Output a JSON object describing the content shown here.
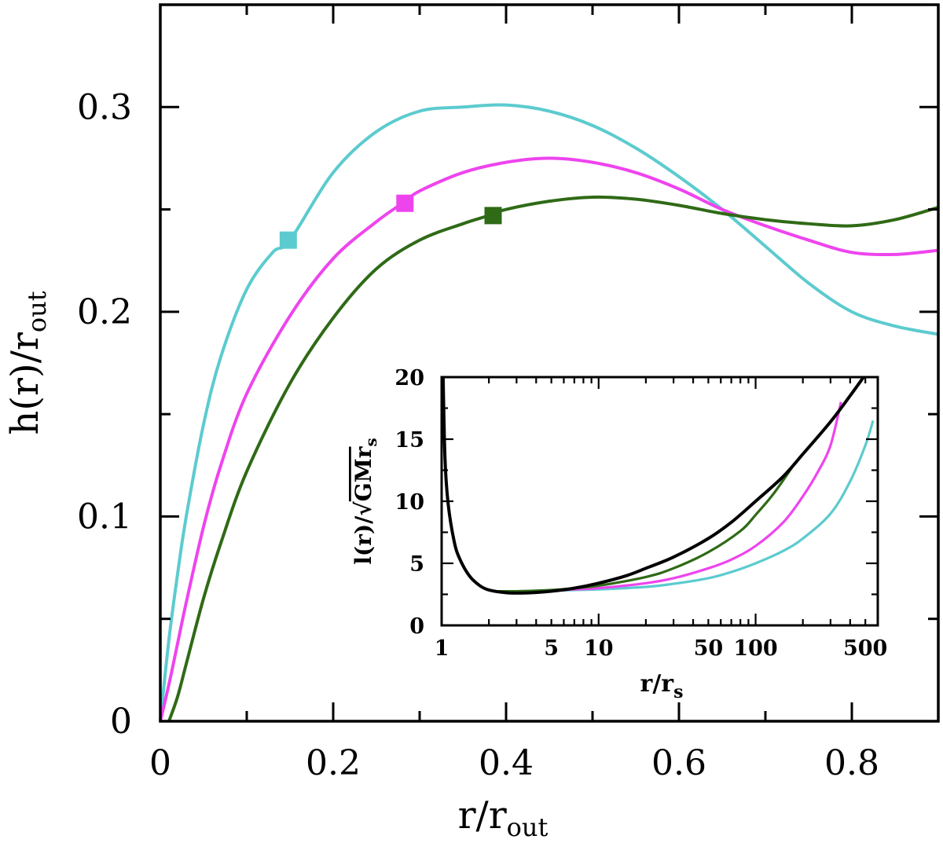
{
  "chart_data": [
    {
      "type": "line",
      "panel": "main",
      "xlabel": "r/r",
      "xlabel_sub": "out",
      "ylabel": "h(r)/r",
      "ylabel_sub": "out",
      "xlim": [
        0,
        0.9
      ],
      "ylim": [
        0,
        0.35
      ],
      "xticks": [
        {
          "value": 0,
          "label": "0"
        },
        {
          "value": 0.2,
          "label": "0.2"
        },
        {
          "value": 0.4,
          "label": "0.4"
        },
        {
          "value": 0.6,
          "label": "0.6"
        },
        {
          "value": 0.8,
          "label": "0.8"
        }
      ],
      "xticks_minor": [
        0.1,
        0.3,
        0.5,
        0.7
      ],
      "yticks": [
        {
          "value": 0,
          "label": "0"
        },
        {
          "value": 0.1,
          "label": "0.1"
        },
        {
          "value": 0.2,
          "label": "0.2"
        },
        {
          "value": 0.3,
          "label": "0.3"
        }
      ],
      "yticks_minor": [
        0.05,
        0.15,
        0.25
      ],
      "series": [
        {
          "name": "cyan",
          "color": "#5ccbcf",
          "x": [
            0.0,
            0.01,
            0.02,
            0.03,
            0.05,
            0.07,
            0.1,
            0.13,
            0.15,
            0.2,
            0.25,
            0.3,
            0.35,
            0.4,
            0.45,
            0.5,
            0.55,
            0.6,
            0.65,
            0.7,
            0.75,
            0.8,
            0.85,
            0.9
          ],
          "y": [
            0.0,
            0.04,
            0.072,
            0.1,
            0.145,
            0.178,
            0.211,
            0.229,
            0.235,
            0.268,
            0.288,
            0.298,
            0.3,
            0.301,
            0.298,
            0.291,
            0.28,
            0.266,
            0.25,
            0.232,
            0.214,
            0.2,
            0.193,
            0.189
          ],
          "marker": {
            "x": 0.148,
            "y": 0.235
          }
        },
        {
          "name": "magenta",
          "color": "#ee44ee",
          "x": [
            0.0,
            0.01,
            0.02,
            0.03,
            0.05,
            0.07,
            0.1,
            0.15,
            0.2,
            0.25,
            0.28,
            0.3,
            0.35,
            0.4,
            0.45,
            0.5,
            0.55,
            0.6,
            0.65,
            0.7,
            0.75,
            0.8,
            0.85,
            0.9
          ],
          "y": [
            0.0,
            0.018,
            0.038,
            0.058,
            0.095,
            0.125,
            0.16,
            0.198,
            0.226,
            0.244,
            0.253,
            0.259,
            0.268,
            0.273,
            0.275,
            0.273,
            0.268,
            0.26,
            0.25,
            0.242,
            0.235,
            0.229,
            0.228,
            0.23
          ],
          "marker": {
            "x": 0.283,
            "y": 0.253
          }
        },
        {
          "name": "green",
          "color": "#2f6a16",
          "x": [
            0.01,
            0.02,
            0.03,
            0.05,
            0.07,
            0.1,
            0.15,
            0.2,
            0.25,
            0.3,
            0.35,
            0.38,
            0.4,
            0.45,
            0.5,
            0.55,
            0.6,
            0.65,
            0.7,
            0.75,
            0.8,
            0.85,
            0.9
          ],
          "y": [
            0.0,
            0.012,
            0.028,
            0.06,
            0.087,
            0.122,
            0.165,
            0.197,
            0.221,
            0.235,
            0.243,
            0.247,
            0.25,
            0.254,
            0.256,
            0.255,
            0.252,
            0.248,
            0.245,
            0.243,
            0.242,
            0.245,
            0.251
          ],
          "marker": {
            "x": 0.385,
            "y": 0.247
          }
        }
      ]
    },
    {
      "type": "line",
      "panel": "inset",
      "xscale": "log",
      "xlabel": "r/r",
      "xlabel_sub": "s",
      "ylabel": "l(r)/",
      "ylabel_root": "GMr",
      "ylabel_sub": "s",
      "xlim": [
        1,
        600
      ],
      "ylim": [
        0,
        20
      ],
      "xticks": [
        {
          "value": 1,
          "label": "1"
        },
        {
          "value": 5,
          "label": "5"
        },
        {
          "value": 10,
          "label": "10"
        },
        {
          "value": 50,
          "label": "50"
        },
        {
          "value": 100,
          "label": "100"
        },
        {
          "value": 500,
          "label": "500"
        }
      ],
      "yticks": [
        {
          "value": 0,
          "label": "0"
        },
        {
          "value": 5,
          "label": "5"
        },
        {
          "value": 10,
          "label": "10"
        },
        {
          "value": 15,
          "label": "15"
        },
        {
          "value": 20,
          "label": "20"
        }
      ],
      "yticks_minor": [
        2.5,
        7.5,
        12.5,
        17.5
      ],
      "series": [
        {
          "name": "black",
          "color": "#000000",
          "x": [
            1.02,
            1.05,
            1.1,
            1.2,
            1.3,
            1.5,
            1.75,
            2,
            2.5,
            3,
            4,
            5,
            7,
            10,
            15,
            20,
            30,
            50,
            70,
            100,
            150,
            200,
            300,
            400,
            500
          ],
          "y": [
            20.5,
            13.5,
            9.8,
            6.8,
            5.4,
            4.0,
            3.2,
            2.85,
            2.65,
            2.6,
            2.65,
            2.75,
            3.0,
            3.4,
            4.0,
            4.6,
            5.5,
            7.0,
            8.3,
            10.0,
            12.0,
            13.8,
            16.4,
            18.5,
            20.2
          ]
        },
        {
          "name": "green",
          "color": "#2f6a16",
          "x": [
            2.3,
            3,
            5,
            7,
            10,
            20,
            30,
            50,
            80,
            100,
            130,
            170
          ],
          "y": [
            2.75,
            2.75,
            2.85,
            3.0,
            3.2,
            3.9,
            4.6,
            5.9,
            7.6,
            8.9,
            10.6,
            12.7
          ]
        },
        {
          "name": "magenta",
          "color": "#ee44ee",
          "x": [
            2.3,
            3,
            5,
            7,
            10,
            20,
            30,
            50,
            70,
            100,
            150,
            200,
            250,
            300,
            350
          ],
          "y": [
            2.7,
            2.7,
            2.8,
            2.9,
            3.0,
            3.4,
            3.8,
            4.6,
            5.3,
            6.4,
            8.3,
            10.4,
            12.4,
            14.5,
            18.0
          ]
        },
        {
          "name": "cyan",
          "color": "#5ccbcf",
          "x": [
            2.3,
            3,
            5,
            7,
            10,
            20,
            30,
            50,
            70,
            100,
            150,
            200,
            300,
            400,
            500,
            560
          ],
          "y": [
            2.7,
            2.7,
            2.8,
            2.85,
            2.9,
            3.1,
            3.35,
            3.8,
            4.3,
            5.0,
            6.0,
            7.0,
            9.0,
            11.6,
            14.5,
            16.5
          ]
        }
      ]
    }
  ]
}
